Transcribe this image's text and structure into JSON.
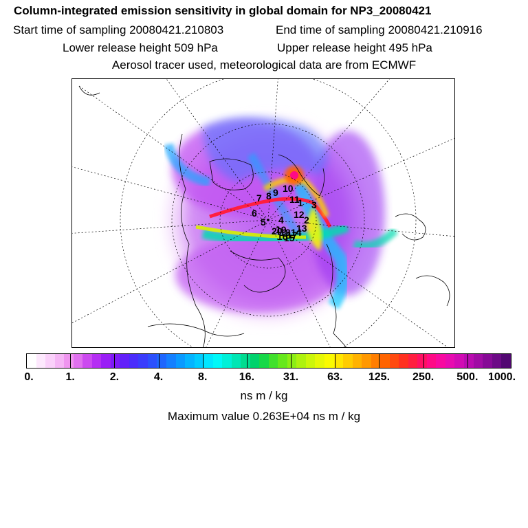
{
  "header": {
    "title": "Column-integrated emission sensitivity in global domain for NP3_20080421",
    "start_time": "Start time of sampling 20080421.210803",
    "end_time": "End time of sampling 20080421.210916",
    "lower_height": "Lower release height  509 hPa",
    "upper_height": "Upper release height  495 hPa",
    "info": "Aerosol tracer used, meteorological data are from ECMWF"
  },
  "map": {
    "labels": [
      "1",
      "2",
      "3",
      "4",
      "5",
      "6",
      "7",
      "8",
      "9",
      "10",
      "11",
      "12",
      "13",
      "14",
      "15",
      "16",
      "17",
      "18",
      "19",
      "20"
    ]
  },
  "colorbar": {
    "ticks": [
      "0.",
      "1.",
      "2.",
      "4.",
      "8.",
      "16.",
      "31.",
      "63.",
      "125.",
      "250.",
      "500.",
      "1000."
    ],
    "colors": [
      "#ffffff",
      "#fde8fd",
      "#fad0fa",
      "#f5b5f5",
      "#ef95ef",
      "#e070ef",
      "#cc4af0",
      "#b52ef3",
      "#9a1ef6",
      "#7e1af8",
      "#6220fa",
      "#4a2cfb",
      "#3a3cfc",
      "#2c50fd",
      "#1e66fe",
      "#1480ff",
      "#0a9aff",
      "#04b4ff",
      "#00ccff",
      "#00e6ff",
      "#00f8f8",
      "#00f0d8",
      "#00e6b4",
      "#00dc90",
      "#00d26c",
      "#16d848",
      "#40e02c",
      "#66e81c",
      "#8cee14",
      "#aef20e",
      "#ccf60a",
      "#e6f806",
      "#fafa00",
      "#ffe600",
      "#ffcc00",
      "#ffb200",
      "#ff9800",
      "#ff7e00",
      "#ff6400",
      "#ff4a10",
      "#ff3020",
      "#ff1e40",
      "#ff1064",
      "#ff0a86",
      "#f80aa0",
      "#e80cb0",
      "#d20cb4",
      "#ba0cb0",
      "#a00ca4",
      "#860a96",
      "#6c0a86",
      "#520872"
    ],
    "units": "ns m / kg"
  },
  "maximum": "Maximum value  0.263E+04 ns m / kg"
}
